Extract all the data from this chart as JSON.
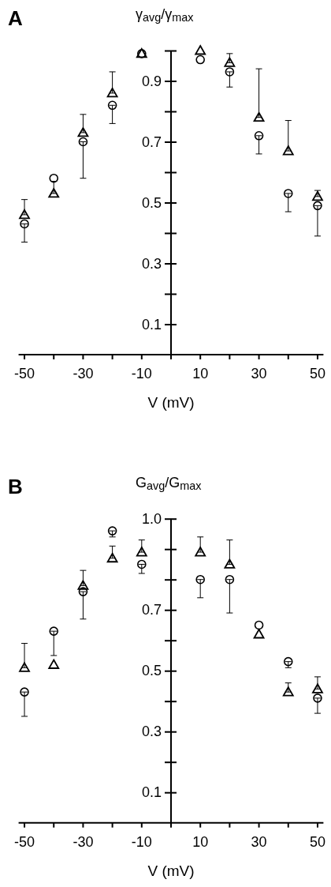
{
  "chart_data": [
    {
      "type": "scatter",
      "ylabel": "γ$_{avg}$/γ$_{max}$",
      "xlabel": "V (mV)",
      "annotations": [
        "A"
      ],
      "x": [
        -50,
        -40,
        -30,
        -20,
        -10,
        10,
        20,
        30,
        40,
        50
      ],
      "xlim": [
        -52,
        52
      ],
      "ylim": [
        0,
        1
      ],
      "xticks": [
        -50,
        {
          "value": -40,
          "label": null
        },
        -30,
        {
          "value": -20,
          "label": null
        },
        -10,
        {
          "value": 0,
          "label": null
        },
        10,
        {
          "value": 20,
          "label": null
        },
        30,
        {
          "value": 40,
          "label": null
        },
        50
      ],
      "yticks": [
        0.1,
        {
          "value": 0.2,
          "label": null
        },
        0.3,
        {
          "value": 0.4,
          "label": null
        },
        0.5,
        {
          "value": 0.6,
          "label": null
        },
        0.7,
        {
          "value": 0.8,
          "label": null
        },
        0.9,
        {
          "value": 1.0,
          "label": null
        }
      ],
      "grid": false,
      "series": [
        {
          "color": "#000000",
          "marker": "triangle",
          "values": [
            0.46,
            0.53,
            0.73,
            0.86,
            0.99,
            1.0,
            0.96,
            0.78,
            0.67,
            0.52
          ],
          "errors": [
            [
              0.46,
              0.51
            ],
            [
              0.53,
              0.57
            ],
            [
              0.73,
              0.79
            ],
            [
              0.86,
              0.93
            ],
            null,
            null,
            [
              0.96,
              0.99
            ],
            [
              0.78,
              0.94
            ],
            [
              0.67,
              0.77
            ],
            [
              0.52,
              0.54
            ]
          ]
        },
        {
          "color": "#000000",
          "marker": "circle",
          "values": [
            0.43,
            0.58,
            0.7,
            0.82,
            0.99,
            0.97,
            0.93,
            0.72,
            0.53,
            0.49
          ],
          "errors": [
            [
              0.37,
              0.43
            ],
            null,
            [
              0.58,
              0.7
            ],
            [
              0.76,
              0.82
            ],
            null,
            null,
            [
              0.88,
              0.93
            ],
            [
              0.66,
              0.72
            ],
            [
              0.47,
              0.53
            ],
            [
              0.39,
              0.49
            ]
          ]
        }
      ]
    },
    {
      "type": "scatter",
      "ylabel": "G$_{avg}$/G$_{max}$",
      "xlabel": "V (mV)",
      "annotations": [
        "B"
      ],
      "x": [
        -50,
        -40,
        -30,
        -20,
        -10,
        10,
        20,
        30,
        40,
        50
      ],
      "xlim": [
        -52,
        52
      ],
      "ylim": [
        0,
        1
      ],
      "xticks": [
        -50,
        {
          "value": -40,
          "label": null
        },
        -30,
        {
          "value": -20,
          "label": null
        },
        -10,
        {
          "value": 0,
          "label": null
        },
        10,
        {
          "value": 20,
          "label": null
        },
        30,
        {
          "value": 40,
          "label": null
        },
        50
      ],
      "yticks": [
        0.1,
        {
          "value": 0.2,
          "label": null
        },
        0.3,
        {
          "value": 0.4,
          "label": null
        },
        0.5,
        {
          "value": 0.6,
          "label": null
        },
        0.7,
        {
          "value": 0.8,
          "label": null
        },
        {
          "value": 0.9,
          "label": null
        },
        {
          "value": 1.0,
          "label": "1.0"
        }
      ],
      "grid": false,
      "series": [
        {
          "color": "#000000",
          "marker": "triangle",
          "values": [
            0.51,
            0.52,
            0.78,
            0.87,
            0.89,
            0.89,
            0.85,
            0.62,
            0.43,
            0.44
          ],
          "errors": [
            [
              0.51,
              0.59
            ],
            null,
            [
              0.78,
              0.83
            ],
            [
              0.87,
              0.91
            ],
            [
              0.89,
              0.93
            ],
            [
              0.89,
              0.94
            ],
            [
              0.85,
              0.93
            ],
            null,
            [
              0.43,
              0.46
            ],
            [
              0.44,
              0.48
            ]
          ]
        },
        {
          "color": "#000000",
          "marker": "circle",
          "values": [
            0.43,
            0.63,
            0.76,
            0.96,
            0.85,
            0.8,
            0.8,
            0.65,
            0.53,
            0.41
          ],
          "errors": [
            [
              0.35,
              0.43
            ],
            [
              0.55,
              0.63
            ],
            [
              0.67,
              0.76
            ],
            [
              0.94,
              0.96
            ],
            [
              0.82,
              0.85
            ],
            [
              0.74,
              0.8
            ],
            [
              0.69,
              0.8
            ],
            null,
            [
              0.51,
              0.53
            ],
            [
              0.36,
              0.41
            ]
          ]
        }
      ]
    }
  ]
}
